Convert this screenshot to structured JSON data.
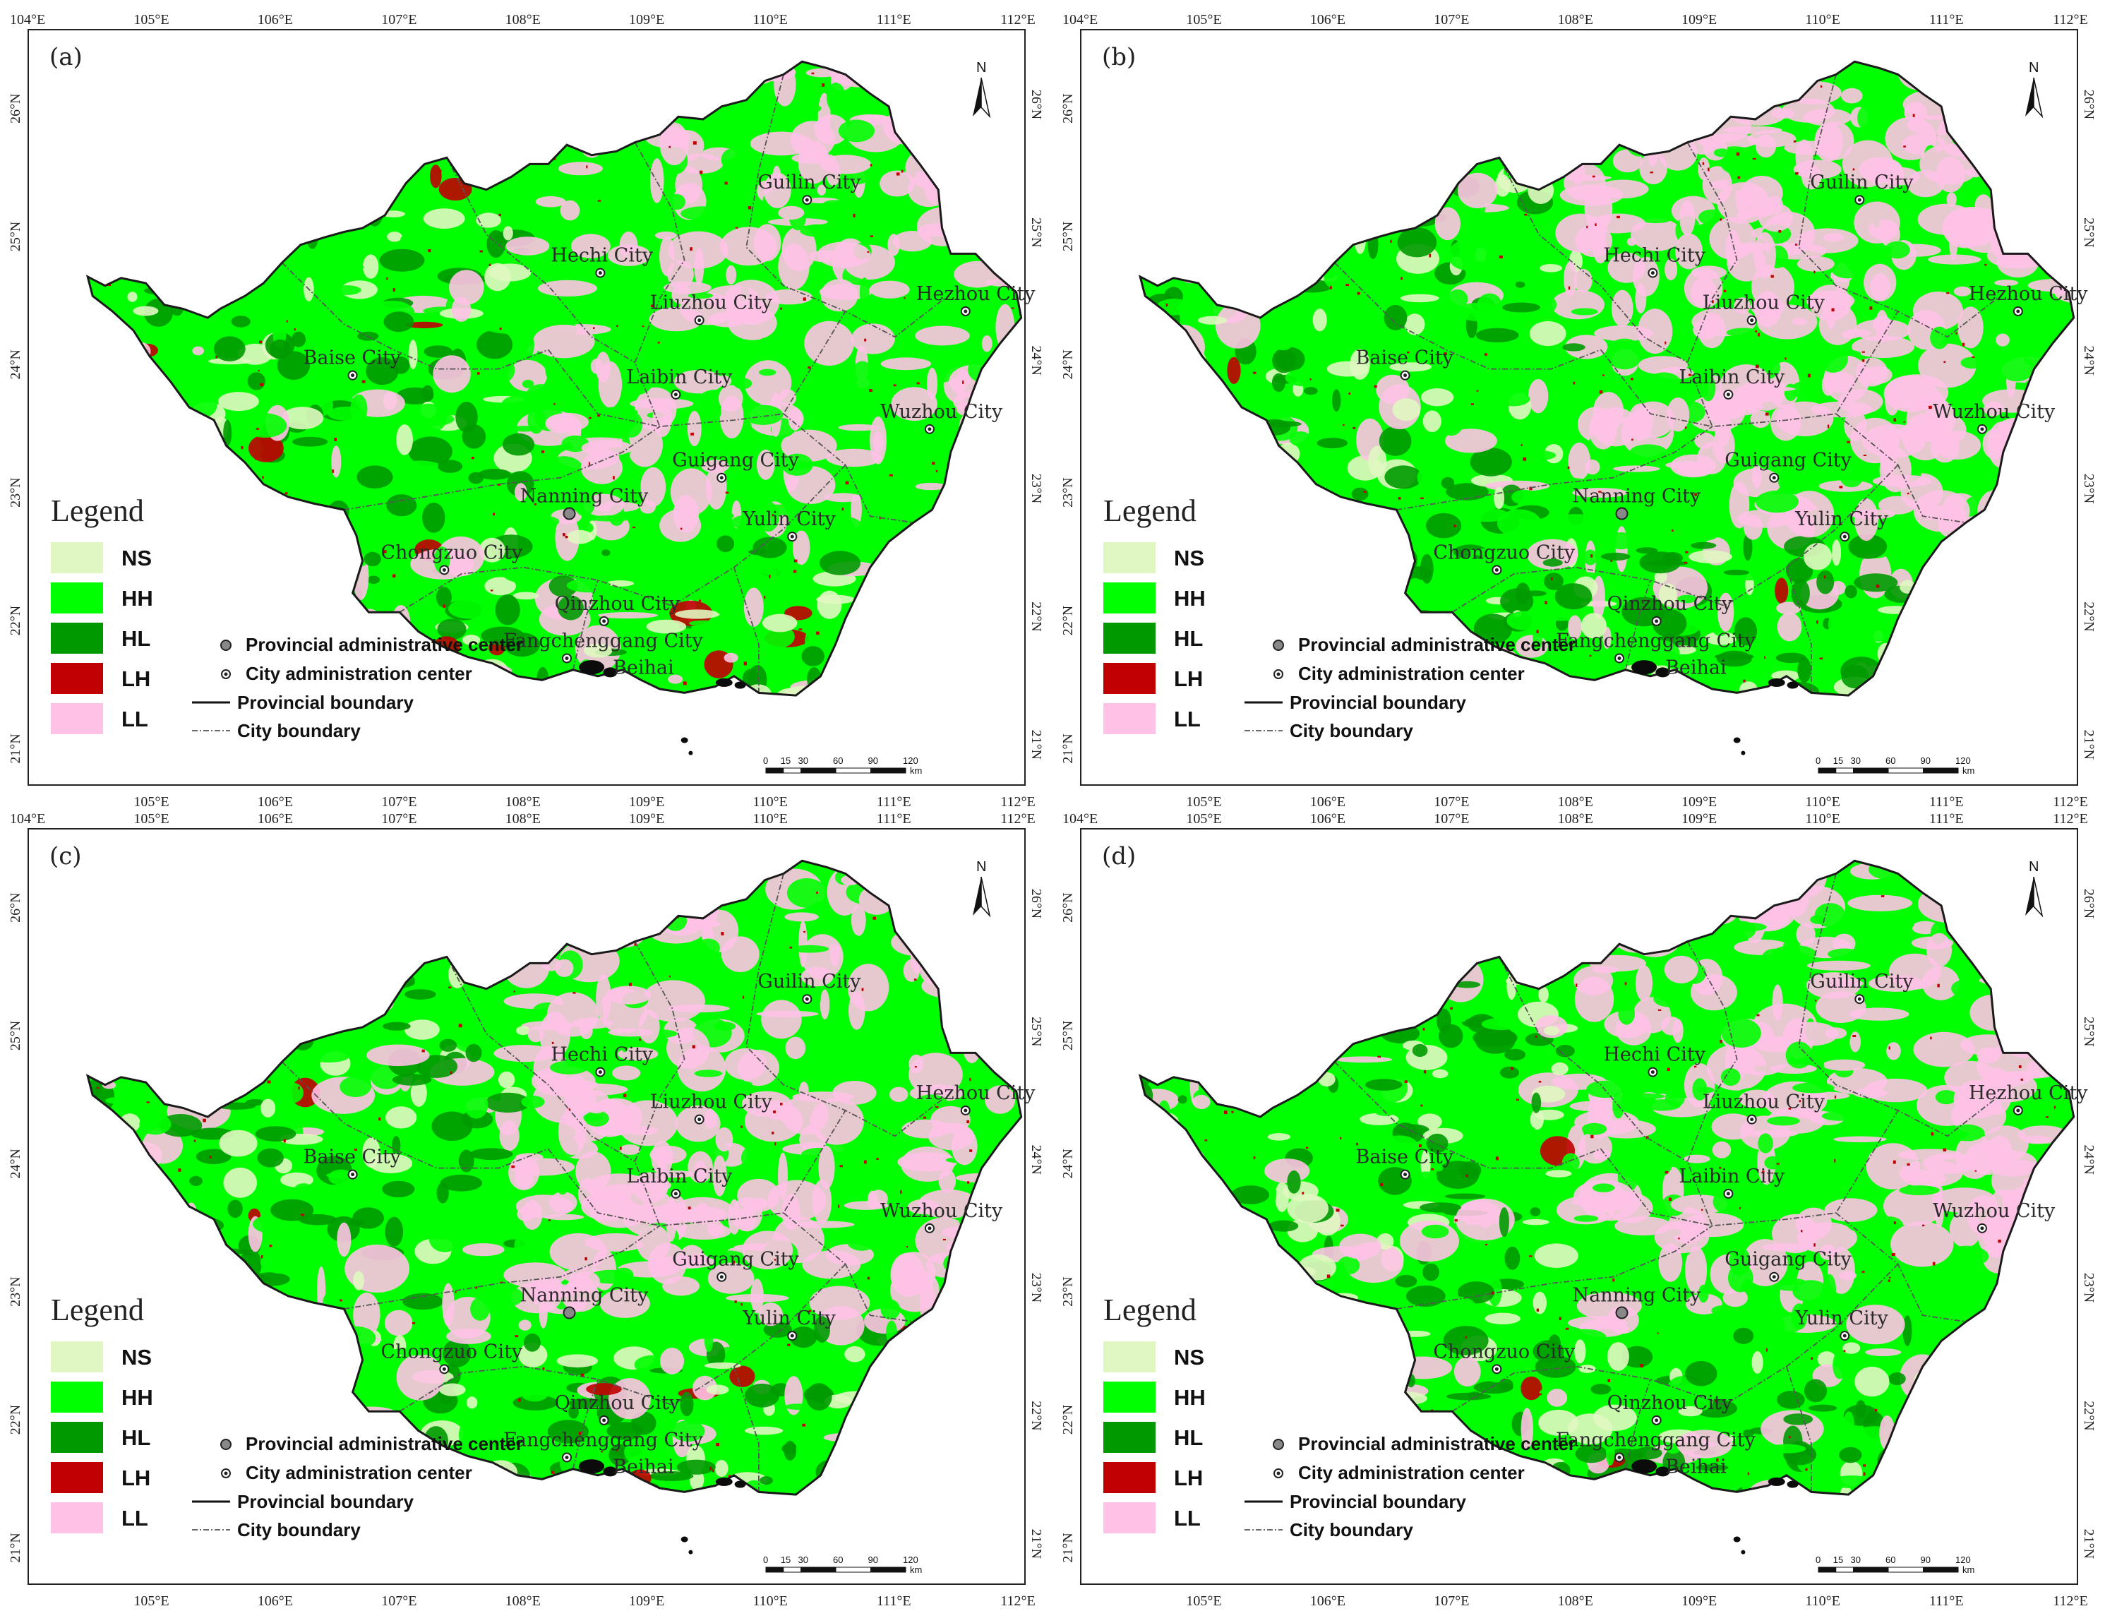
{
  "panels": [
    {
      "label": "(a)",
      "id": "a",
      "legend_title": "Legend",
      "legend": [
        {
          "code": "NS",
          "color": "#e0f7c1"
        },
        {
          "code": "HH",
          "color": "#00ff00"
        },
        {
          "code": "HL",
          "color": "#009a00"
        },
        {
          "code": "LH",
          "color": "#c00000"
        },
        {
          "code": "LL",
          "color": "#ffc2e6"
        }
      ],
      "symbols": [
        "Provincial administrative center",
        "City administration center",
        "Provincial boundary",
        "City boundary"
      ]
    },
    {
      "label": "(b)",
      "id": "b",
      "legend_title": "Legend",
      "legend": [
        {
          "code": "NS",
          "color": "#e0f7c1"
        },
        {
          "code": "HH",
          "color": "#00ff00"
        },
        {
          "code": "HL",
          "color": "#009a00"
        },
        {
          "code": "LH",
          "color": "#c00000"
        },
        {
          "code": "LL",
          "color": "#ffc2e6"
        }
      ],
      "symbols": [
        "Provincial administrative center",
        "City administration center",
        "Provincial boundary",
        "City boundary"
      ]
    },
    {
      "label": "(c)",
      "id": "c",
      "legend_title": "Legend",
      "legend": [
        {
          "code": "NS",
          "color": "#e0f7c1"
        },
        {
          "code": "HH",
          "color": "#00ff00"
        },
        {
          "code": "HL",
          "color": "#009a00"
        },
        {
          "code": "LH",
          "color": "#c00000"
        },
        {
          "code": "LL",
          "color": "#ffc2e6"
        }
      ],
      "symbols": [
        "Provincial administrative center",
        "City administration center",
        "Provincial boundary",
        "City boundary"
      ]
    },
    {
      "label": "(d)",
      "id": "d",
      "legend_title": "Legend",
      "legend": [
        {
          "code": "NS",
          "color": "#e0f7c1"
        },
        {
          "code": "HH",
          "color": "#00ff00"
        },
        {
          "code": "HL",
          "color": "#009a00"
        },
        {
          "code": "LH",
          "color": "#c00000"
        },
        {
          "code": "LL",
          "color": "#ffc2e6"
        }
      ],
      "symbols": [
        "Provincial administrative center",
        "City administration center",
        "Provincial boundary",
        "City boundary"
      ]
    }
  ],
  "lon_ticks_top": [
    "104°E",
    "105°E",
    "106°E",
    "107°E",
    "108°E",
    "109°E",
    "110°E",
    "111°E",
    "112°E"
  ],
  "lon_ticks_bottom": [
    "105°E",
    "106°E",
    "107°E",
    "108°E",
    "109°E",
    "110°E",
    "111°E",
    "112°E"
  ],
  "lat_ticks": [
    "26°N",
    "25°N",
    "24°N",
    "23°N",
    "22°N",
    "21°N"
  ],
  "cities": [
    {
      "name": "Guilin City",
      "lon": 110.29,
      "lat": 25.27
    },
    {
      "name": "Hechi City",
      "lon": 108.62,
      "lat": 24.7
    },
    {
      "name": "Liuzhou City",
      "lon": 109.42,
      "lat": 24.33
    },
    {
      "name": "Hezhou City",
      "lon": 111.57,
      "lat": 24.4
    },
    {
      "name": "Baise City",
      "lon": 106.62,
      "lat": 23.9
    },
    {
      "name": "Laibin City",
      "lon": 109.23,
      "lat": 23.75
    },
    {
      "name": "Wuzhou City",
      "lon": 111.28,
      "lat": 23.48
    },
    {
      "name": "Guigang City",
      "lon": 109.6,
      "lat": 23.1
    },
    {
      "name": "Nanning City",
      "lon": 108.37,
      "lat": 22.82,
      "provincial": true
    },
    {
      "name": "Yulin City",
      "lon": 110.17,
      "lat": 22.64
    },
    {
      "name": "Chongzuo City",
      "lon": 107.36,
      "lat": 22.38
    },
    {
      "name": "Qinzhou City",
      "lon": 108.65,
      "lat": 21.98
    },
    {
      "name": "Fangchenggang City",
      "lon": 108.35,
      "lat": 21.69
    },
    {
      "name": "Beihai",
      "lon": 109.12,
      "lat": 21.48
    }
  ],
  "scale_bar": {
    "ticks": [
      "0",
      "15",
      "30",
      "60",
      "90",
      "120"
    ],
    "unit": "km"
  },
  "north_label": "N"
}
